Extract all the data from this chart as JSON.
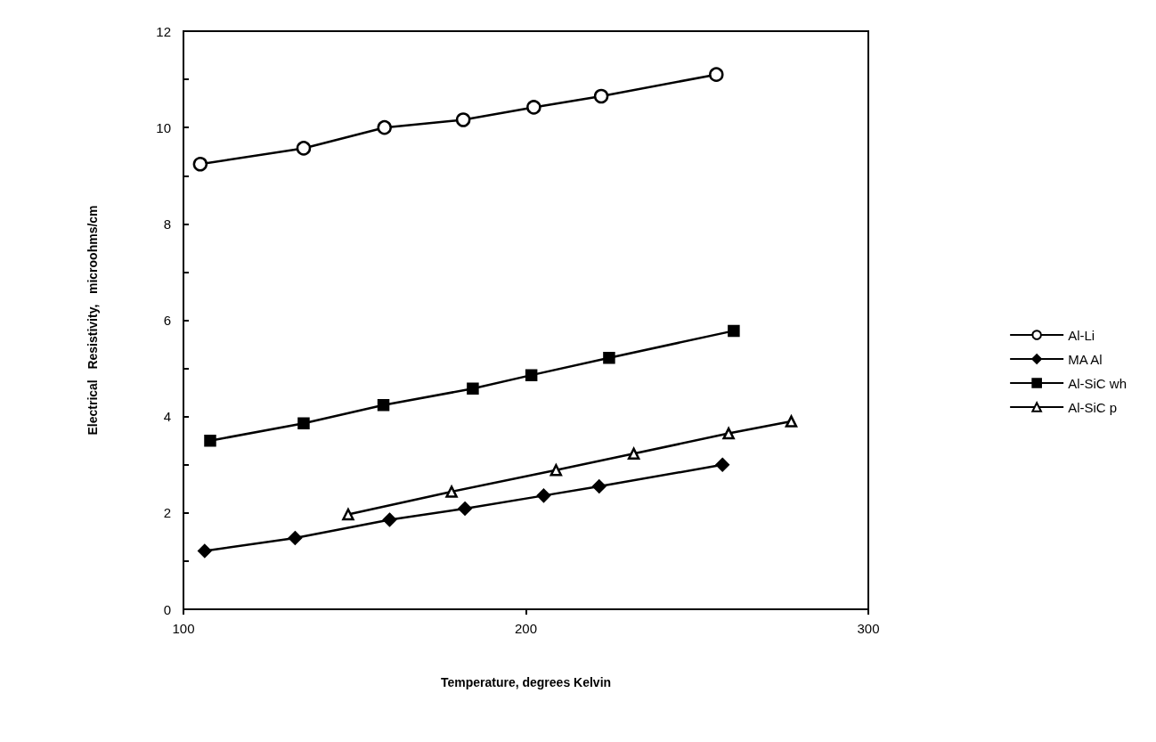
{
  "chart_data": {
    "type": "line",
    "xlabel": "Temperature, degrees Kelvin",
    "ylabel": "Electrical   Resistivity,   microohms/cm",
    "xlim": [
      100,
      300
    ],
    "xticks": [
      100,
      200,
      300
    ],
    "ylim": [
      0,
      12
    ],
    "yticks": [
      0,
      {
        "value": 1,
        "label": null
      },
      2,
      {
        "value": 3,
        "label": null
      },
      4,
      {
        "value": 5,
        "label": null
      },
      6,
      {
        "value": 7,
        "label": null
      },
      8,
      {
        "value": 9,
        "label": null
      },
      10,
      {
        "value": 11,
        "label": null
      },
      12
    ],
    "grid": false,
    "legend": "right",
    "line_style": "solid",
    "series": [
      {
        "name": "Al-Li",
        "color": "#000000",
        "marker": "circle",
        "x": [
          104.9,
          135.1,
          158.7,
          181.7,
          202.3,
          222.0,
          255.6
        ],
        "values": [
          9.24,
          9.57,
          10.0,
          10.16,
          10.42,
          10.65,
          11.1
        ]
      },
      {
        "name": "MA Al",
        "color": "#000000",
        "marker": "diamond",
        "x": [
          106.2,
          132.6,
          160.2,
          182.2,
          205.2,
          221.4,
          257.4
        ],
        "values": [
          1.21,
          1.48,
          1.86,
          2.09,
          2.36,
          2.55,
          3.0
        ]
      },
      {
        "name": "Al-SiC wh",
        "color": "#000000",
        "marker": "square",
        "x": [
          107.8,
          135.1,
          158.4,
          184.5,
          201.6,
          224.3,
          260.7
        ],
        "values": [
          3.5,
          3.86,
          4.24,
          4.58,
          4.86,
          5.22,
          5.78
        ]
      },
      {
        "name": "Al-SiC p",
        "color": "#000000",
        "marker": "triangle",
        "x": [
          148.1,
          178.3,
          208.8,
          231.5,
          259.2,
          277.5
        ],
        "values": [
          1.97,
          2.44,
          2.89,
          3.23,
          3.65,
          3.9
        ]
      }
    ]
  }
}
